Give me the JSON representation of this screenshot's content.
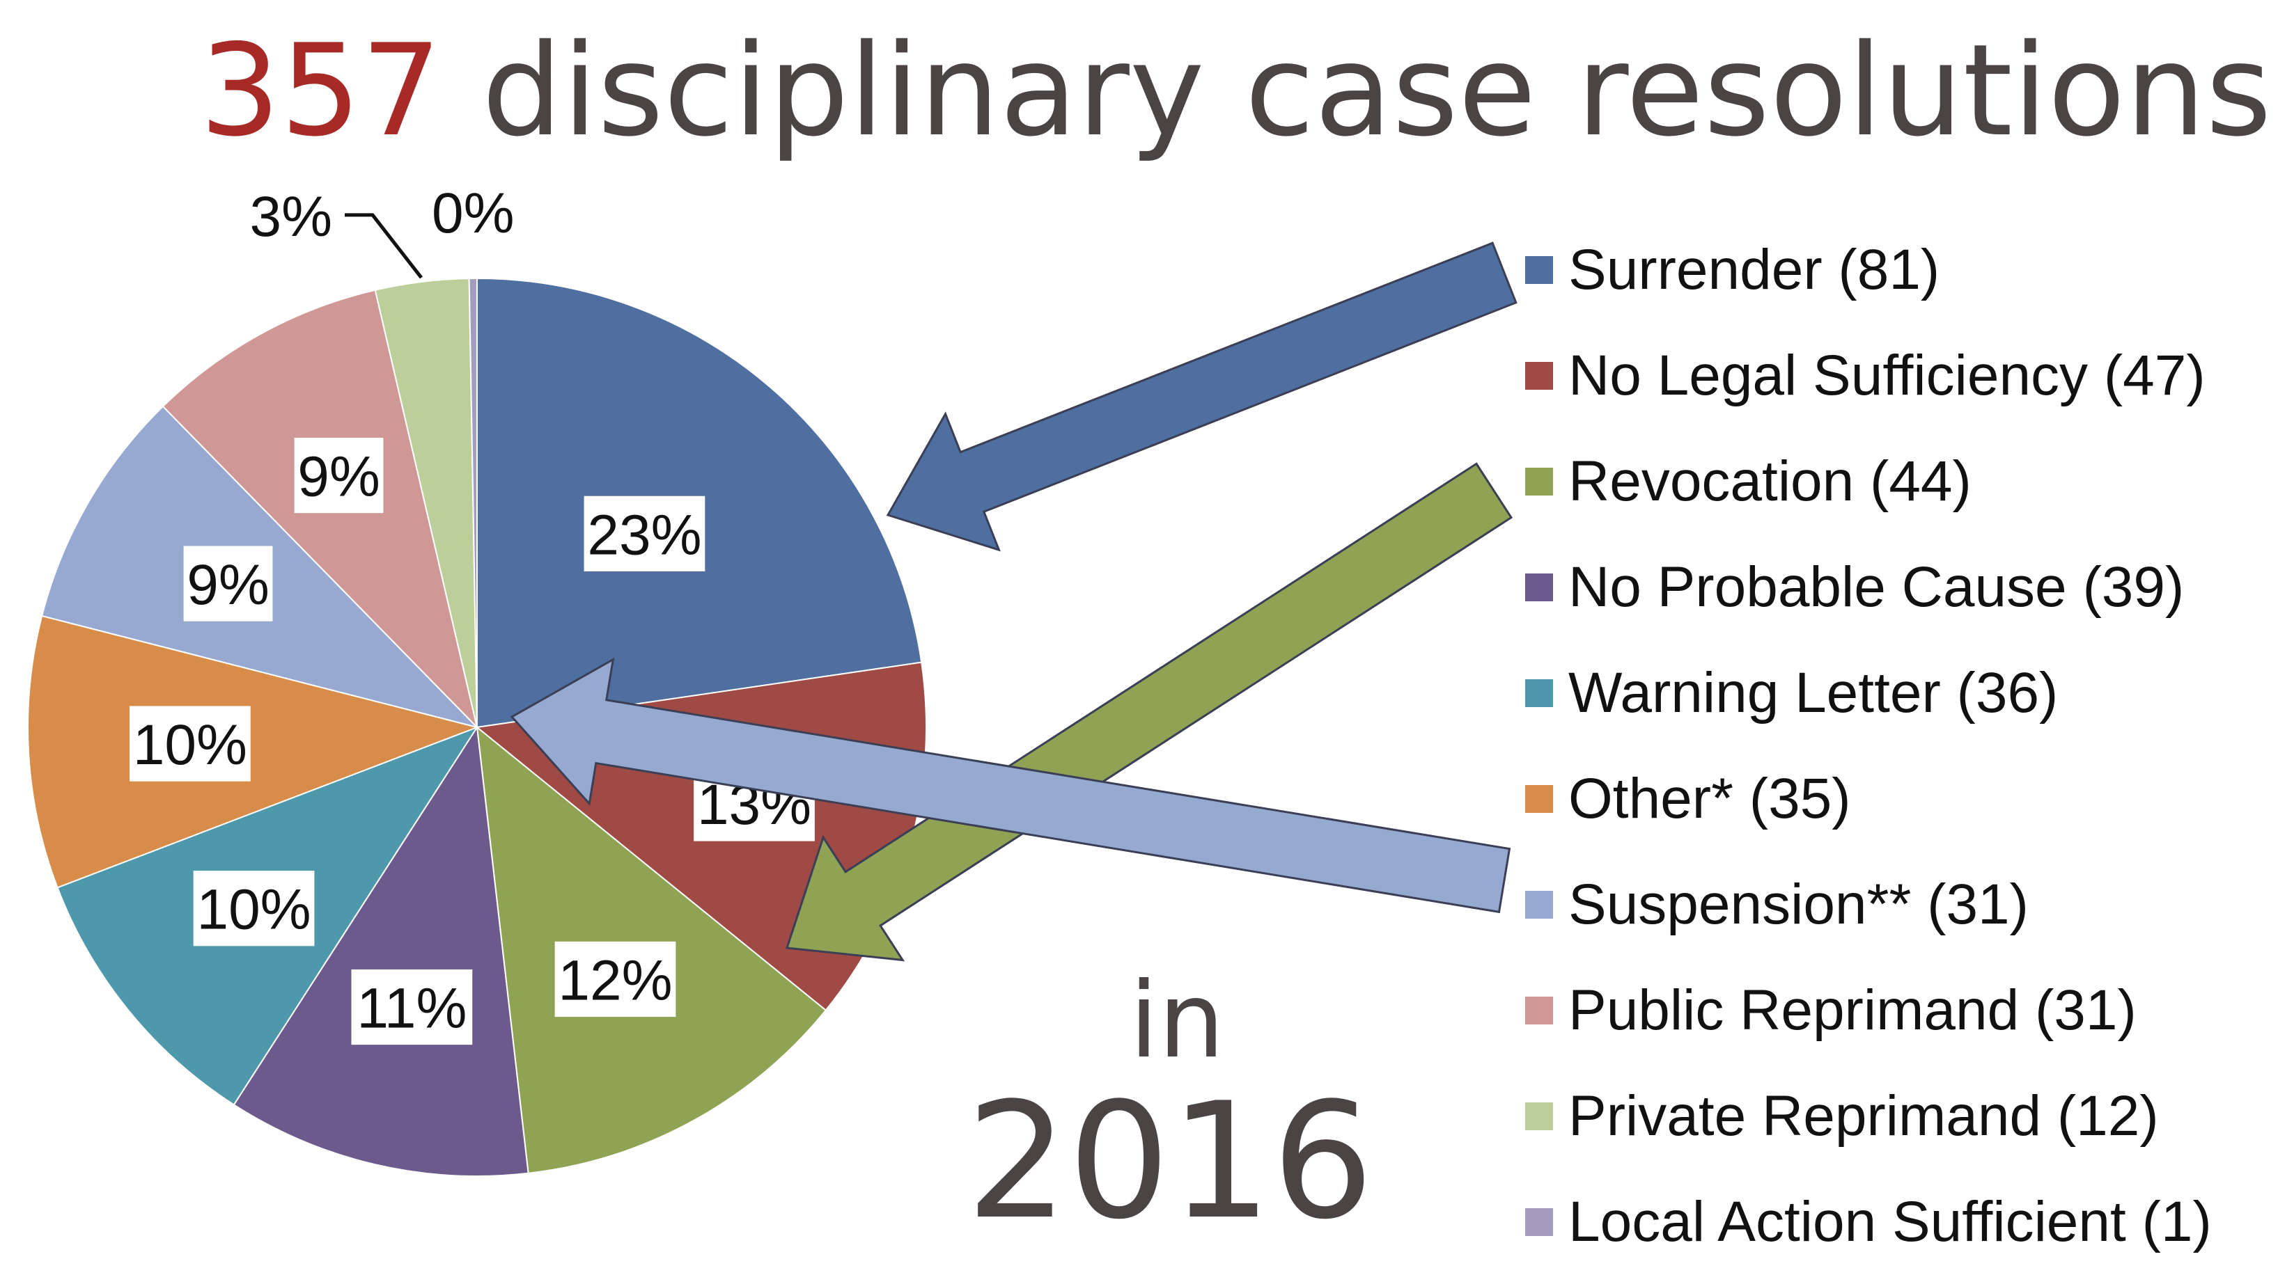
{
  "title": {
    "number": "357",
    "text": " disciplinary case resolutions"
  },
  "year_caption": {
    "prefix": "in",
    "year": "2016"
  },
  "colors": {
    "title_accent": "#a82a27",
    "title_text": "#4a4544",
    "arrow_blue": "#4f6fa0",
    "arrow_green": "#8ea354",
    "arrow_lightblue": "#96a9d0"
  },
  "chart_data": {
    "type": "pie",
    "title": "357 disciplinary case resolutions",
    "legend_position": "right",
    "slices": [
      {
        "label": "Surrender (81)",
        "value": 81,
        "percent_label": "23%",
        "color": "#4f6fa0"
      },
      {
        "label": "No Legal Sufficiency (47)",
        "value": 47,
        "percent_label": "13%",
        "color": "#a04a45"
      },
      {
        "label": "Revocation (44)",
        "value": 44,
        "percent_label": "12%",
        "color": "#8ea354"
      },
      {
        "label": "No Probable Cause (39)",
        "value": 39,
        "percent_label": "11%",
        "color": "#6c5a8d"
      },
      {
        "label": "Warning Letter (36)",
        "value": 36,
        "percent_label": "10%",
        "color": "#4d98aa"
      },
      {
        "label": "Other* (35)",
        "value": 35,
        "percent_label": "10%",
        "color": "#d88c49"
      },
      {
        "label": "Suspension** (31)",
        "value": 31,
        "percent_label": "9%",
        "color": "#97a9d1"
      },
      {
        "label": "Public Reprimand (31)",
        "value": 31,
        "percent_label": "9%",
        "color": "#cf9896"
      },
      {
        "label": "Private Reprimand (12)",
        "value": 12,
        "percent_label": "3%",
        "color": "#bccf9a"
      },
      {
        "label": "Local Action Sufficient (1)",
        "value": 1,
        "percent_label": "0%",
        "color": "#a49cbe"
      }
    ]
  }
}
